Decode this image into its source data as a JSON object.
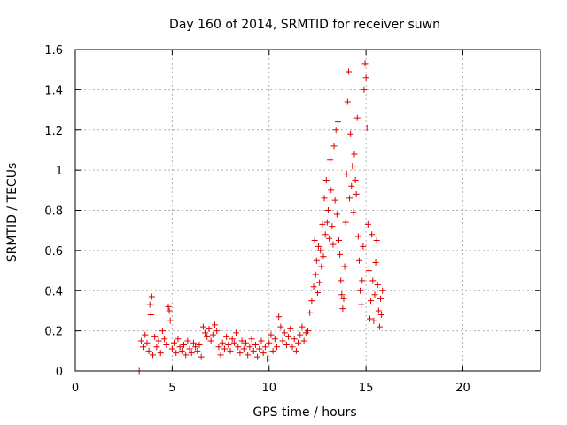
{
  "chart_data": {
    "type": "scatter",
    "title": "Day 160 of 2014, SRMTID for receiver suwn",
    "xlabel": "GPS time / hours",
    "ylabel": "SRMTID / TECUs",
    "xlim": [
      0,
      24
    ],
    "ylim": [
      0,
      1.6
    ],
    "xticks": [
      0,
      5,
      10,
      15,
      20
    ],
    "yticks": [
      0,
      0.2,
      0.4,
      0.6,
      0.8,
      1,
      1.2,
      1.4,
      1.6
    ],
    "xtick_labels": [
      "0",
      "5",
      "10",
      "15",
      "20"
    ],
    "ytick_labels": [
      "0",
      "0.2",
      "0.4",
      "0.6",
      "0.8",
      "1",
      "1.2",
      "1.4",
      "1.6"
    ],
    "grid": true,
    "marker": "+",
    "color": "#e00000",
    "series": [
      {
        "name": "SRMTID",
        "points": [
          [
            3.3,
            0.0
          ],
          [
            3.4,
            0.15
          ],
          [
            3.5,
            0.12
          ],
          [
            3.6,
            0.18
          ],
          [
            3.7,
            0.14
          ],
          [
            3.8,
            0.1
          ],
          [
            3.85,
            0.33
          ],
          [
            3.9,
            0.28
          ],
          [
            3.95,
            0.37
          ],
          [
            4.0,
            0.08
          ],
          [
            4.1,
            0.17
          ],
          [
            4.2,
            0.12
          ],
          [
            4.3,
            0.15
          ],
          [
            4.4,
            0.09
          ],
          [
            4.5,
            0.2
          ],
          [
            4.6,
            0.16
          ],
          [
            4.7,
            0.13
          ],
          [
            4.8,
            0.32
          ],
          [
            4.85,
            0.3
          ],
          [
            4.9,
            0.25
          ],
          [
            5.0,
            0.11
          ],
          [
            5.1,
            0.14
          ],
          [
            5.2,
            0.09
          ],
          [
            5.3,
            0.16
          ],
          [
            5.4,
            0.12
          ],
          [
            5.5,
            0.1
          ],
          [
            5.6,
            0.13
          ],
          [
            5.7,
            0.08
          ],
          [
            5.8,
            0.15
          ],
          [
            5.9,
            0.11
          ],
          [
            6.0,
            0.09
          ],
          [
            6.1,
            0.14
          ],
          [
            6.2,
            0.12
          ],
          [
            6.3,
            0.1
          ],
          [
            6.4,
            0.13
          ],
          [
            6.5,
            0.07
          ],
          [
            6.6,
            0.22
          ],
          [
            6.7,
            0.19
          ],
          [
            6.8,
            0.17
          ],
          [
            6.9,
            0.21
          ],
          [
            7.0,
            0.15
          ],
          [
            7.1,
            0.18
          ],
          [
            7.2,
            0.23
          ],
          [
            7.3,
            0.2
          ],
          [
            7.4,
            0.12
          ],
          [
            7.5,
            0.08
          ],
          [
            7.6,
            0.14
          ],
          [
            7.7,
            0.11
          ],
          [
            7.8,
            0.17
          ],
          [
            7.9,
            0.13
          ],
          [
            8.0,
            0.1
          ],
          [
            8.1,
            0.16
          ],
          [
            8.2,
            0.14
          ],
          [
            8.3,
            0.19
          ],
          [
            8.4,
            0.12
          ],
          [
            8.5,
            0.09
          ],
          [
            8.6,
            0.15
          ],
          [
            8.7,
            0.11
          ],
          [
            8.8,
            0.14
          ],
          [
            8.9,
            0.08
          ],
          [
            9.0,
            0.12
          ],
          [
            9.1,
            0.16
          ],
          [
            9.2,
            0.1
          ],
          [
            9.3,
            0.13
          ],
          [
            9.4,
            0.07
          ],
          [
            9.5,
            0.11
          ],
          [
            9.6,
            0.15
          ],
          [
            9.7,
            0.09
          ],
          [
            9.8,
            0.12
          ],
          [
            9.9,
            0.06
          ],
          [
            10.0,
            0.14
          ],
          [
            10.1,
            0.18
          ],
          [
            10.2,
            0.1
          ],
          [
            10.3,
            0.16
          ],
          [
            10.4,
            0.12
          ],
          [
            10.5,
            0.27
          ],
          [
            10.6,
            0.22
          ],
          [
            10.7,
            0.15
          ],
          [
            10.8,
            0.19
          ],
          [
            10.9,
            0.13
          ],
          [
            11.0,
            0.17
          ],
          [
            11.1,
            0.21
          ],
          [
            11.2,
            0.12
          ],
          [
            11.3,
            0.16
          ],
          [
            11.4,
            0.1
          ],
          [
            11.5,
            0.14
          ],
          [
            11.6,
            0.18
          ],
          [
            11.7,
            0.22
          ],
          [
            11.8,
            0.15
          ],
          [
            11.9,
            0.19
          ],
          [
            12.0,
            0.2
          ],
          [
            12.1,
            0.29
          ],
          [
            12.2,
            0.35
          ],
          [
            12.3,
            0.42
          ],
          [
            12.35,
            0.65
          ],
          [
            12.4,
            0.48
          ],
          [
            12.45,
            0.55
          ],
          [
            12.5,
            0.39
          ],
          [
            12.55,
            0.62
          ],
          [
            12.6,
            0.44
          ],
          [
            12.65,
            0.6
          ],
          [
            12.7,
            0.52
          ],
          [
            12.75,
            0.73
          ],
          [
            12.8,
            0.57
          ],
          [
            12.85,
            0.86
          ],
          [
            12.9,
            0.68
          ],
          [
            12.95,
            0.95
          ],
          [
            13.0,
            0.74
          ],
          [
            13.05,
            0.8
          ],
          [
            13.1,
            0.66
          ],
          [
            13.15,
            1.05
          ],
          [
            13.2,
            0.9
          ],
          [
            13.25,
            0.72
          ],
          [
            13.3,
            0.63
          ],
          [
            13.35,
            1.12
          ],
          [
            13.4,
            0.85
          ],
          [
            13.45,
            1.2
          ],
          [
            13.5,
            0.78
          ],
          [
            13.55,
            1.24
          ],
          [
            13.6,
            0.65
          ],
          [
            13.65,
            0.58
          ],
          [
            13.7,
            0.45
          ],
          [
            13.75,
            0.38
          ],
          [
            13.8,
            0.31
          ],
          [
            13.85,
            0.36
          ],
          [
            13.9,
            0.52
          ],
          [
            13.95,
            0.74
          ],
          [
            14.0,
            0.98
          ],
          [
            14.05,
            1.34
          ],
          [
            14.1,
            1.49
          ],
          [
            14.15,
            0.86
          ],
          [
            14.2,
            1.18
          ],
          [
            14.25,
            0.92
          ],
          [
            14.3,
            1.02
          ],
          [
            14.35,
            0.79
          ],
          [
            14.4,
            1.08
          ],
          [
            14.45,
            0.95
          ],
          [
            14.5,
            0.88
          ],
          [
            14.55,
            1.26
          ],
          [
            14.6,
            0.67
          ],
          [
            14.65,
            0.55
          ],
          [
            14.7,
            0.4
          ],
          [
            14.75,
            0.33
          ],
          [
            14.8,
            0.45
          ],
          [
            14.85,
            0.62
          ],
          [
            14.9,
            1.4
          ],
          [
            14.95,
            1.53
          ],
          [
            15.0,
            1.46
          ],
          [
            15.05,
            1.21
          ],
          [
            15.1,
            0.73
          ],
          [
            15.15,
            0.5
          ],
          [
            15.2,
            0.26
          ],
          [
            15.25,
            0.35
          ],
          [
            15.3,
            0.68
          ],
          [
            15.35,
            0.45
          ],
          [
            15.4,
            0.25
          ],
          [
            15.45,
            0.38
          ],
          [
            15.5,
            0.54
          ],
          [
            15.55,
            0.65
          ],
          [
            15.6,
            0.43
          ],
          [
            15.65,
            0.3
          ],
          [
            15.7,
            0.22
          ],
          [
            15.75,
            0.36
          ],
          [
            15.8,
            0.28
          ],
          [
            15.85,
            0.4
          ]
        ]
      }
    ]
  }
}
